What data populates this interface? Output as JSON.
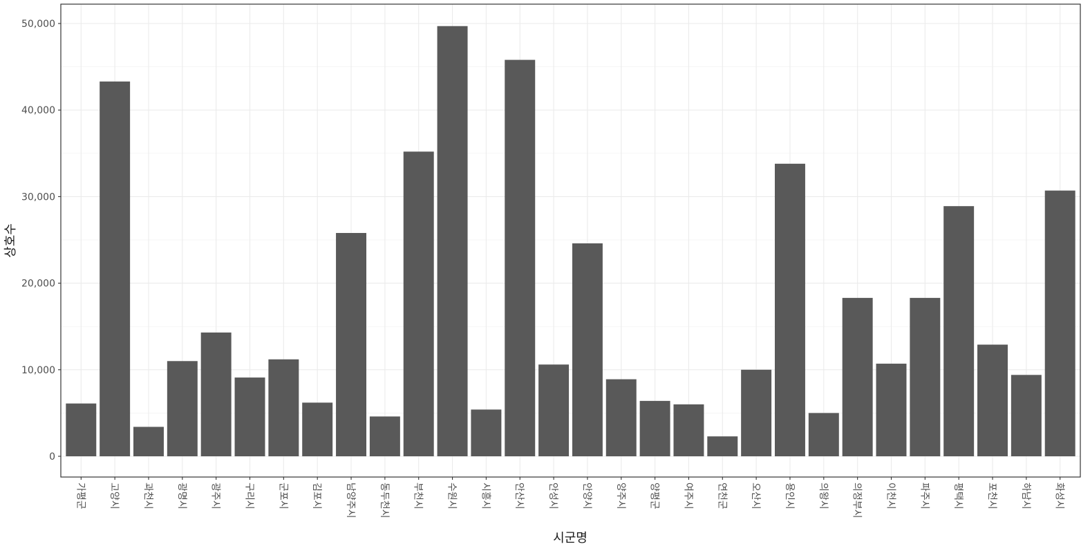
{
  "chart_data": {
    "type": "bar",
    "xlabel": "시군명",
    "ylabel": "상호수",
    "ylim": [
      0,
      50000
    ],
    "y_ticks": [
      0,
      10000,
      20000,
      30000,
      40000,
      50000
    ],
    "y_tick_labels": [
      "0",
      "10,000",
      "20,000",
      "30,000",
      "40,000",
      "50,000"
    ],
    "grid": true,
    "bar_color": "#595959",
    "categories": [
      "가평군",
      "고양시",
      "과천시",
      "광명시",
      "광주시",
      "구리시",
      "군포시",
      "김포시",
      "남양주시",
      "동두천시",
      "부천시",
      "수원시",
      "시흥시",
      "안산시",
      "안성시",
      "안양시",
      "양주시",
      "양평군",
      "여주시",
      "연천군",
      "오산시",
      "용인시",
      "의왕시",
      "의정부시",
      "이천시",
      "파주시",
      "평택시",
      "포천시",
      "하남시",
      "화성시"
    ],
    "values": [
      6100,
      43300,
      3400,
      11000,
      14300,
      9100,
      11200,
      6200,
      25800,
      4600,
      35200,
      49700,
      5400,
      45800,
      10600,
      24600,
      8900,
      6400,
      6000,
      2300,
      10000,
      33800,
      5000,
      18300,
      10700,
      18300,
      28900,
      12900,
      9400,
      30700
    ]
  }
}
